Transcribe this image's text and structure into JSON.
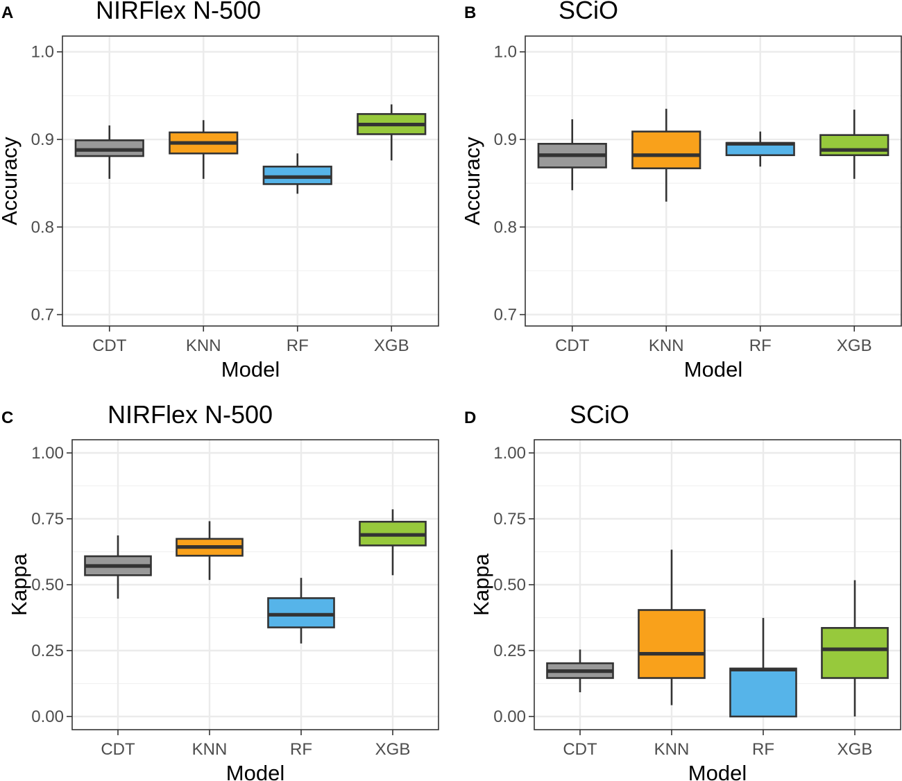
{
  "chart_data": [
    {
      "panel": "A",
      "type": "boxplot",
      "title": "NIRFlex N-500",
      "xlabel": "Model",
      "ylabel": "Accuracy",
      "ylim": [
        0.687,
        1.018
      ],
      "yticks": [
        0.7,
        0.8,
        0.9,
        1.0
      ],
      "ytick_labels": [
        "0.7",
        "0.8",
        "0.9",
        "1.0"
      ],
      "grid": true,
      "categories": [
        "CDT",
        "KNN",
        "RF",
        "XGB"
      ],
      "boxes": [
        {
          "category": "CDT",
          "min": 0.855,
          "q1": 0.881,
          "median": 0.888,
          "q3": 0.899,
          "max": 0.916,
          "color": "#999999"
        },
        {
          "category": "KNN",
          "min": 0.855,
          "q1": 0.884,
          "median": 0.896,
          "q3": 0.908,
          "max": 0.922,
          "color": "#F9A11B"
        },
        {
          "category": "RF",
          "min": 0.838,
          "q1": 0.849,
          "median": 0.857,
          "q3": 0.869,
          "max": 0.884,
          "color": "#56B4E9"
        },
        {
          "category": "XGB",
          "min": 0.876,
          "q1": 0.906,
          "median": 0.917,
          "q3": 0.929,
          "max": 0.94,
          "color": "#97C93C"
        }
      ]
    },
    {
      "panel": "B",
      "type": "boxplot",
      "title": "SCiO",
      "xlabel": "Model",
      "ylabel": "Accuracy",
      "ylim": [
        0.687,
        1.018
      ],
      "yticks": [
        0.7,
        0.8,
        0.9,
        1.0
      ],
      "ytick_labels": [
        "0.7",
        "0.8",
        "0.9",
        "1.0"
      ],
      "grid": true,
      "categories": [
        "CDT",
        "KNN",
        "RF",
        "XGB"
      ],
      "boxes": [
        {
          "category": "CDT",
          "min": 0.842,
          "q1": 0.868,
          "median": 0.882,
          "q3": 0.895,
          "max": 0.923,
          "color": "#999999"
        },
        {
          "category": "KNN",
          "min": 0.829,
          "q1": 0.867,
          "median": 0.882,
          "q3": 0.909,
          "max": 0.935,
          "color": "#F9A11B"
        },
        {
          "category": "RF",
          "min": 0.869,
          "q1": 0.882,
          "median": 0.895,
          "q3": 0.896,
          "max": 0.909,
          "color": "#56B4E9"
        },
        {
          "category": "XGB",
          "min": 0.855,
          "q1": 0.882,
          "median": 0.888,
          "q3": 0.905,
          "max": 0.934,
          "color": "#97C93C"
        }
      ]
    },
    {
      "panel": "C",
      "type": "boxplot",
      "title": "NIRFlex N-500",
      "xlabel": "Model",
      "ylabel": "Kappa",
      "ylim": [
        -0.05,
        1.05
      ],
      "yticks": [
        0.0,
        0.25,
        0.5,
        0.75,
        1.0
      ],
      "ytick_labels": [
        "0.00",
        "0.25",
        "0.50",
        "0.75",
        "1.00"
      ],
      "grid": true,
      "categories": [
        "CDT",
        "KNN",
        "RF",
        "XGB"
      ],
      "boxes": [
        {
          "category": "CDT",
          "min": 0.447,
          "q1": 0.536,
          "median": 0.571,
          "q3": 0.608,
          "max": 0.687,
          "color": "#999999"
        },
        {
          "category": "KNN",
          "min": 0.518,
          "q1": 0.61,
          "median": 0.643,
          "q3": 0.674,
          "max": 0.741,
          "color": "#F9A11B"
        },
        {
          "category": "RF",
          "min": 0.277,
          "q1": 0.338,
          "median": 0.386,
          "q3": 0.449,
          "max": 0.526,
          "color": "#56B4E9"
        },
        {
          "category": "XGB",
          "min": 0.536,
          "q1": 0.649,
          "median": 0.689,
          "q3": 0.739,
          "max": 0.786,
          "color": "#97C93C"
        }
      ]
    },
    {
      "panel": "D",
      "type": "boxplot",
      "title": "SCiO",
      "xlabel": "Model",
      "ylabel": "Kappa",
      "ylim": [
        -0.05,
        1.05
      ],
      "yticks": [
        0.0,
        0.25,
        0.5,
        0.75,
        1.0
      ],
      "ytick_labels": [
        "0.00",
        "0.25",
        "0.50",
        "0.75",
        "1.00"
      ],
      "grid": true,
      "categories": [
        "CDT",
        "KNN",
        "RF",
        "XGB"
      ],
      "boxes": [
        {
          "category": "CDT",
          "min": 0.092,
          "q1": 0.146,
          "median": 0.172,
          "q3": 0.202,
          "max": 0.254,
          "color": "#999999"
        },
        {
          "category": "KNN",
          "min": 0.043,
          "q1": 0.146,
          "median": 0.238,
          "q3": 0.404,
          "max": 0.633,
          "color": "#F9A11B"
        },
        {
          "category": "RF",
          "min": 0.0,
          "q1": 0.0,
          "median": 0.178,
          "q3": 0.182,
          "max": 0.374,
          "color": "#56B4E9"
        },
        {
          "category": "XGB",
          "min": 0.0,
          "q1": 0.146,
          "median": 0.255,
          "q3": 0.336,
          "max": 0.517,
          "color": "#97C93C"
        }
      ]
    }
  ]
}
